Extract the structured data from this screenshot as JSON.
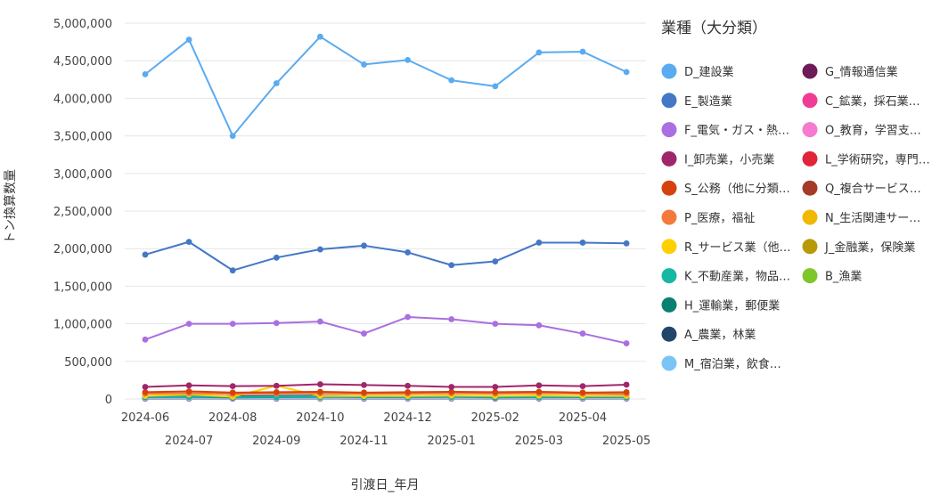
{
  "chart_data": {
    "type": "line",
    "title": "",
    "xlabel": "引渡日_年月",
    "ylabel": "トン換算数量",
    "ylim": [
      0,
      5000000
    ],
    "yticks": [
      "0",
      "500,000",
      "1,000,000",
      "1,500,000",
      "2,000,000",
      "2,500,000",
      "3,000,000",
      "3,500,000",
      "4,000,000",
      "4,500,000",
      "5,000,000"
    ],
    "x": [
      "2024-06",
      "2024-07",
      "2024-08",
      "2024-09",
      "2024-10",
      "2024-11",
      "2024-12",
      "2025-01",
      "2025-02",
      "2025-03",
      "2025-04",
      "2025-05"
    ],
    "grid": true,
    "legend_position": "right",
    "legend_title": "業種（大分類）",
    "series": [
      {
        "name": "D_建設業",
        "color": "#5aabf0",
        "values": [
          4320000,
          4780000,
          3500000,
          4200000,
          4820000,
          4450000,
          4510000,
          4240000,
          4160000,
          4610000,
          4620000,
          4350000
        ]
      },
      {
        "name": "E_製造業",
        "color": "#4477c6",
        "values": [
          1920000,
          2090000,
          1710000,
          1880000,
          1990000,
          2040000,
          1950000,
          1780000,
          1830000,
          2080000,
          2080000,
          2070000
        ]
      },
      {
        "name": "F_電気・ガス・熱…",
        "color": "#aa6fe0",
        "values": [
          790000,
          1000000,
          1000000,
          1010000,
          1030000,
          870000,
          1090000,
          1060000,
          1000000,
          980000,
          870000,
          740000
        ]
      },
      {
        "name": "I_卸売業，小売業",
        "color": "#a0266b",
        "values": [
          160000,
          180000,
          170000,
          175000,
          195000,
          185000,
          175000,
          160000,
          160000,
          180000,
          170000,
          190000
        ]
      },
      {
        "name": "S_公務（他に分類…",
        "color": "#d4430f",
        "values": [
          90000,
          100000,
          85000,
          90000,
          95000,
          85000,
          90000,
          95000,
          90000,
          95000,
          85000,
          90000
        ]
      },
      {
        "name": "P_医療，福祉",
        "color": "#f47a3c",
        "values": [
          70000,
          75000,
          65000,
          70000,
          75000,
          70000,
          70000,
          75000,
          70000,
          75000,
          70000,
          70000
        ]
      },
      {
        "name": "R_サービス業（他…",
        "color": "#ffd000",
        "values": [
          40000,
          60000,
          30000,
          175000,
          40000,
          40000,
          40000,
          45000,
          40000,
          45000,
          40000,
          40000
        ]
      },
      {
        "name": "K_不動産業，物品…",
        "color": "#16b8a3",
        "values": [
          30000,
          35000,
          25000,
          30000,
          35000,
          30000,
          30000,
          35000,
          25000,
          30000,
          30000,
          30000
        ]
      },
      {
        "name": "H_運輸業，郵便業",
        "color": "#0a8070",
        "values": [
          25000,
          30000,
          20000,
          25000,
          30000,
          25000,
          25000,
          30000,
          20000,
          25000,
          25000,
          25000
        ]
      },
      {
        "name": "A_農業，林業",
        "color": "#24456a",
        "values": [
          40000,
          45000,
          35000,
          40000,
          45000,
          40000,
          40000,
          45000,
          35000,
          45000,
          40000,
          45000
        ]
      },
      {
        "name": "M_宿泊業，飲食…",
        "color": "#7cc4f5",
        "values": [
          10000,
          12000,
          9000,
          10000,
          12000,
          10000,
          10000,
          12000,
          9000,
          11000,
          10000,
          11000
        ]
      },
      {
        "name": "G_情報通信業",
        "color": "#6d1b59",
        "values": [
          8000,
          9000,
          7000,
          8000,
          9000,
          8000,
          8000,
          9000,
          7000,
          8000,
          8000,
          8000
        ]
      },
      {
        "name": "C_鉱業，採石業…",
        "color": "#ef3d95",
        "values": [
          15000,
          20000,
          15000,
          15000,
          20000,
          15000,
          15000,
          20000,
          15000,
          20000,
          15000,
          20000
        ]
      },
      {
        "name": "O_教育，学習支…",
        "color": "#f57ad0",
        "values": [
          5000,
          6000,
          5000,
          5000,
          6000,
          5000,
          5000,
          6000,
          5000,
          6000,
          5000,
          6000
        ]
      },
      {
        "name": "L_学術研究，専門…",
        "color": "#e0243a",
        "values": [
          12000,
          15000,
          12000,
          12000,
          15000,
          12000,
          12000,
          15000,
          12000,
          15000,
          12000,
          15000
        ]
      },
      {
        "name": "Q_複合サービス…",
        "color": "#a63a28",
        "values": [
          6000,
          7000,
          6000,
          6000,
          7000,
          6000,
          6000,
          7000,
          6000,
          7000,
          6000,
          7000
        ]
      },
      {
        "name": "N_生活関連サー…",
        "color": "#f0b800",
        "values": [
          20000,
          25000,
          20000,
          20000,
          25000,
          20000,
          20000,
          25000,
          20000,
          25000,
          20000,
          25000
        ]
      },
      {
        "name": "J_金融業，保険業",
        "color": "#b89a08",
        "values": [
          4000,
          5000,
          4000,
          4000,
          5000,
          4000,
          4000,
          5000,
          4000,
          5000,
          4000,
          5000
        ]
      },
      {
        "name": "B_漁業",
        "color": "#7ec629",
        "values": [
          20000,
          22000,
          18000,
          20000,
          22000,
          20000,
          20000,
          22000,
          18000,
          22000,
          20000,
          22000
        ]
      }
    ]
  }
}
